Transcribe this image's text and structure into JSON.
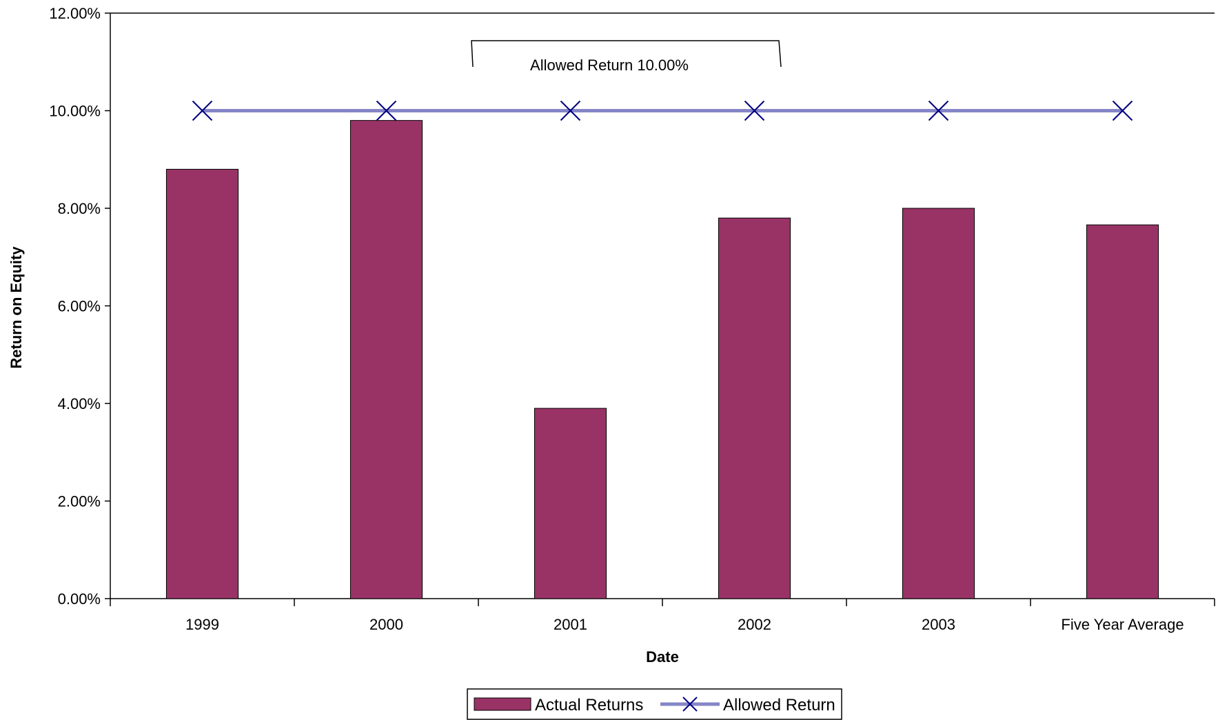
{
  "chart_data": {
    "type": "bar",
    "categories": [
      "1999",
      "2000",
      "2001",
      "2002",
      "2003",
      "Five Year Average"
    ],
    "series": [
      {
        "name": "Actual Returns",
        "kind": "bar",
        "values": [
          8.8,
          9.8,
          3.9,
          7.8,
          8.0,
          7.66
        ]
      },
      {
        "name": "Allowed Return",
        "kind": "line",
        "marker": "x",
        "values": [
          10.0,
          10.0,
          10.0,
          10.0,
          10.0,
          10.0
        ]
      }
    ],
    "xlabel": "Date",
    "ylabel": "Return on Equity",
    "ylim": [
      0,
      12
    ],
    "yticks": [
      0,
      2,
      4,
      6,
      8,
      10,
      12
    ],
    "ytick_labels": [
      "0.00%",
      "2.00%",
      "4.00%",
      "6.00%",
      "8.00%",
      "10.00%",
      "12.00%"
    ],
    "annotation": "Allowed Return 10.00%",
    "legend_position": "bottom",
    "grid": false,
    "colors": {
      "bar": "#993366",
      "line": "#8585c8",
      "marker": "#000080"
    }
  }
}
